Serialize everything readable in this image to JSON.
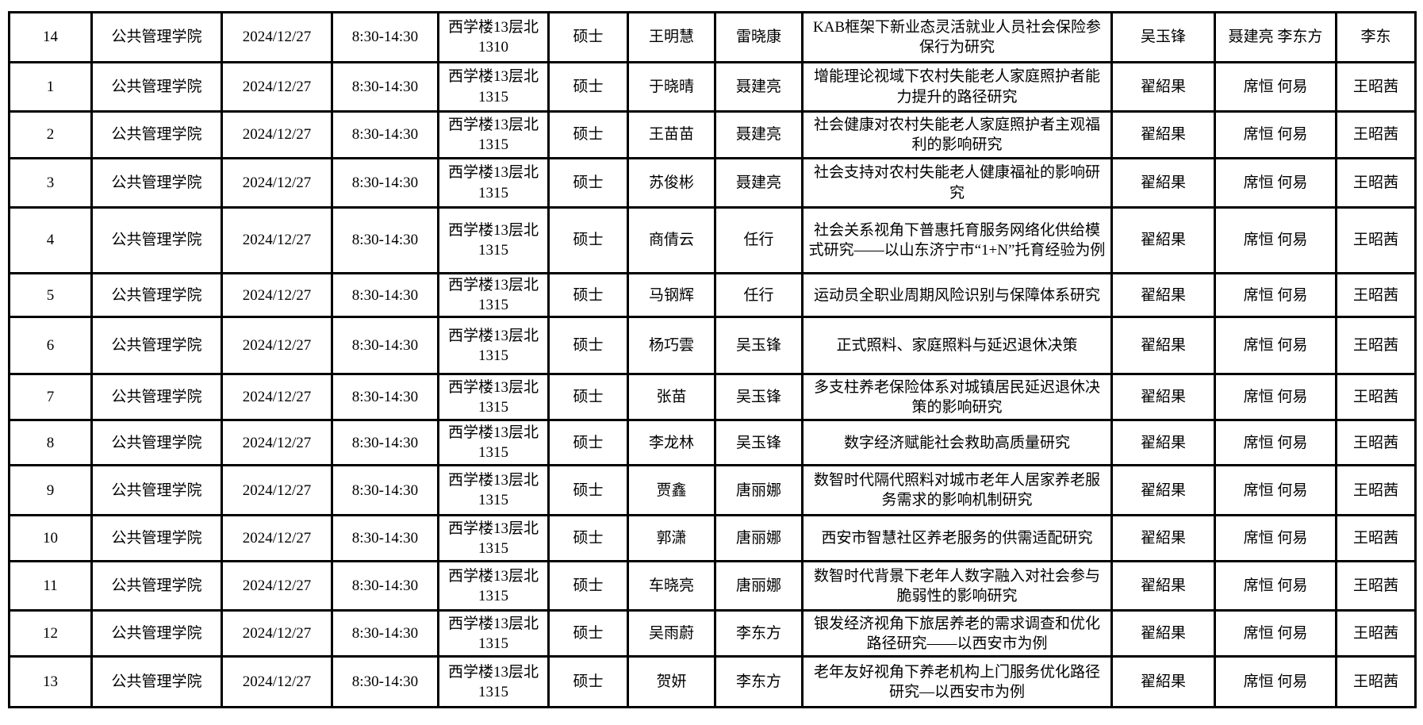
{
  "table": {
    "rows": [
      {
        "num": "14",
        "college": "公共管理学院",
        "date": "2024/12/27",
        "time": "8:30-14:30",
        "location": "西学楼13层北 1310",
        "degree": "硕士",
        "student": "王明慧",
        "advisor": "雷晓康",
        "title": "KAB框架下新业态灵活就业人员社会保险参保行为研究",
        "chair": "吴玉锋",
        "members": "聂建亮 李东方",
        "secretary": "李东"
      },
      {
        "num": "1",
        "college": "公共管理学院",
        "date": "2024/12/27",
        "time": "8:30-14:30",
        "location": "西学楼13层北 1315",
        "degree": "硕士",
        "student": "于晓晴",
        "advisor": "聂建亮",
        "title": "增能理论视域下农村失能老人家庭照护者能力提升的路径研究",
        "chair": "翟紹果",
        "members": "席恒 何易",
        "secretary": "王昭茜"
      },
      {
        "num": "2",
        "college": "公共管理学院",
        "date": "2024/12/27",
        "time": "8:30-14:30",
        "location": "西学楼13层北 1315",
        "degree": "硕士",
        "student": "王苗苗",
        "advisor": "聂建亮",
        "title": "社会健康对农村失能老人家庭照护者主观福利的影响研究",
        "chair": "翟紹果",
        "members": "席恒 何易",
        "secretary": "王昭茜"
      },
      {
        "num": "3",
        "college": "公共管理学院",
        "date": "2024/12/27",
        "time": "8:30-14:30",
        "location": "西学楼13层北 1315",
        "degree": "硕士",
        "student": "苏俊彬",
        "advisor": "聂建亮",
        "title": "社会支持对农村失能老人健康福祉的影响研究",
        "chair": "翟紹果",
        "members": "席恒 何易",
        "secretary": "王昭茜"
      },
      {
        "num": "4",
        "college": "公共管理学院",
        "date": "2024/12/27",
        "time": "8:30-14:30",
        "location": "西学楼13层北 1315",
        "degree": "硕士",
        "student": "商倩云",
        "advisor": "任行",
        "title": "社会关系视角下普惠托育服务网络化供给模式研究——以山东济宁市“1+N”托育经验为例",
        "chair": "翟紹果",
        "members": "席恒 何易",
        "secretary": "王昭茜"
      },
      {
        "num": "5",
        "college": "公共管理学院",
        "date": "2024/12/27",
        "time": "8:30-14:30",
        "location": "西学楼13层北 1315",
        "degree": "硕士",
        "student": "马钢辉",
        "advisor": "任行",
        "title": "运动员全职业周期风险识别与保障体系研究",
        "chair": "翟紹果",
        "members": "席恒 何易",
        "secretary": "王昭茜"
      },
      {
        "num": "6",
        "college": "公共管理学院",
        "date": "2024/12/27",
        "time": "8:30-14:30",
        "location": "西学楼13层北 1315",
        "degree": "硕士",
        "student": "杨巧雲",
        "advisor": "吴玉锋",
        "title": "正式照料、家庭照料与延迟退休决策",
        "chair": "翟紹果",
        "members": "席恒 何易",
        "secretary": "王昭茜"
      },
      {
        "num": "7",
        "college": "公共管理学院",
        "date": "2024/12/27",
        "time": "8:30-14:30",
        "location": "西学楼13层北 1315",
        "degree": "硕士",
        "student": "张苗",
        "advisor": "吴玉锋",
        "title": "多支柱养老保险体系对城镇居民延迟退休决策的影响研究",
        "chair": "翟紹果",
        "members": "席恒 何易",
        "secretary": "王昭茜"
      },
      {
        "num": "8",
        "college": "公共管理学院",
        "date": "2024/12/27",
        "time": "8:30-14:30",
        "location": "西学楼13层北 1315",
        "degree": "硕士",
        "student": "李龙林",
        "advisor": "吴玉锋",
        "title": "数字经济赋能社会救助高质量研究",
        "chair": "翟紹果",
        "members": "席恒 何易",
        "secretary": "王昭茜"
      },
      {
        "num": "9",
        "college": "公共管理学院",
        "date": "2024/12/27",
        "time": "8:30-14:30",
        "location": "西学楼13层北 1315",
        "degree": "硕士",
        "student": "贾鑫",
        "advisor": "唐丽娜",
        "title": "数智时代隔代照料对城市老年人居家养老服务需求的影响机制研究",
        "chair": "翟紹果",
        "members": "席恒 何易",
        "secretary": "王昭茜"
      },
      {
        "num": "10",
        "college": "公共管理学院",
        "date": "2024/12/27",
        "time": "8:30-14:30",
        "location": "西学楼13层北 1315",
        "degree": "硕士",
        "student": "郭潇",
        "advisor": "唐丽娜",
        "title": "西安市智慧社区养老服务的供需适配研究",
        "chair": "翟紹果",
        "members": "席恒 何易",
        "secretary": "王昭茜"
      },
      {
        "num": "11",
        "college": "公共管理学院",
        "date": "2024/12/27",
        "time": "8:30-14:30",
        "location": "西学楼13层北 1315",
        "degree": "硕士",
        "student": "车晓亮",
        "advisor": "唐丽娜",
        "title": "数智时代背景下老年人数字融入对社会参与脆弱性的影响研究",
        "chair": "翟紹果",
        "members": "席恒 何易",
        "secretary": "王昭茜"
      },
      {
        "num": "12",
        "college": "公共管理学院",
        "date": "2024/12/27",
        "time": "8:30-14:30",
        "location": "西学楼13层北 1315",
        "degree": "硕士",
        "student": "吴雨蔚",
        "advisor": "李东方",
        "title": "银发经济视角下旅居养老的需求调查和优化路径研究——以西安市为例",
        "chair": "翟紹果",
        "members": "席恒 何易",
        "secretary": "王昭茜"
      },
      {
        "num": "13",
        "college": "公共管理学院",
        "date": "2024/12/27",
        "time": "8:30-14:30",
        "location": "西学楼13层北 1315",
        "degree": "硕士",
        "student": "贺妍",
        "advisor": "李东方",
        "title": "老年友好视角下养老机构上门服务优化路径研究—以西安市为例",
        "chair": "翟紹果",
        "members": "席恒 何易",
        "secretary": "王昭茜"
      }
    ]
  }
}
